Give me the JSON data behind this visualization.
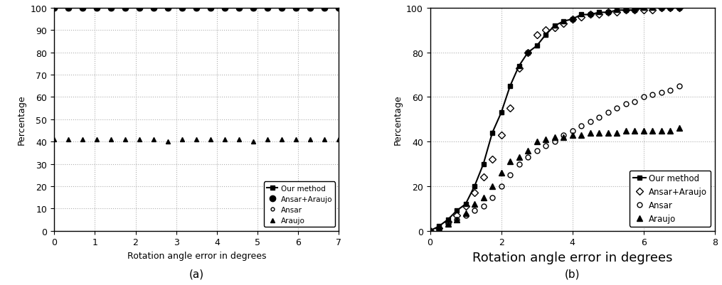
{
  "chart_a": {
    "xlabel": "Rotation angle error in degrees",
    "ylabel": "Percentage",
    "xlim": [
      0,
      7
    ],
    "ylim": [
      0,
      100
    ],
    "xticks": [
      0,
      1,
      2,
      3,
      4,
      5,
      6,
      7
    ],
    "yticks": [
      0,
      10,
      20,
      30,
      40,
      50,
      60,
      70,
      80,
      90,
      100
    ],
    "label_a": "(a)",
    "series": {
      "our_method": {
        "x": [
          0.0,
          0.35,
          0.7,
          1.05,
          1.4,
          1.75,
          2.1,
          2.45,
          2.8,
          3.15,
          3.5,
          3.85,
          4.2,
          4.55,
          4.9,
          5.25,
          5.6,
          5.95,
          6.3,
          6.65,
          7.0
        ],
        "y": [
          100,
          100,
          100,
          100,
          100,
          100,
          100,
          100,
          100,
          100,
          100,
          100,
          100,
          100,
          100,
          100,
          100,
          100,
          100,
          100,
          100
        ],
        "label": "Our method",
        "marker": "s",
        "markersize": 4
      },
      "ansar_araujo": {
        "x": [
          0.0,
          0.35,
          0.7,
          1.05,
          1.4,
          1.75,
          2.1,
          2.45,
          2.8,
          3.15,
          3.5,
          3.85,
          4.2,
          4.55,
          4.9,
          5.25,
          5.6,
          5.95,
          6.3,
          6.65,
          7.0
        ],
        "y": [
          100,
          100,
          100,
          100,
          100,
          100,
          100,
          100,
          100,
          100,
          100,
          100,
          100,
          100,
          100,
          100,
          100,
          100,
          100,
          100,
          100
        ],
        "label": "Ansar+Araujo",
        "marker": "o",
        "markersize": 6
      },
      "ansar": {
        "x": [
          0.0,
          0.35,
          0.7,
          1.05,
          1.4,
          1.75,
          2.1,
          2.45,
          2.8,
          3.15,
          3.5,
          3.85,
          4.2,
          4.55,
          4.9,
          5.25,
          5.6,
          5.95,
          6.3,
          6.65,
          7.0
        ],
        "y": [
          100,
          100,
          100,
          100,
          100,
          100,
          100,
          100,
          100,
          100,
          100,
          100,
          100,
          100,
          100,
          100,
          100,
          100,
          100,
          100,
          100
        ],
        "label": "Ansar",
        "marker": "o",
        "markersize": 3.5
      },
      "araujo": {
        "x": [
          0.0,
          0.35,
          0.7,
          1.05,
          1.4,
          1.75,
          2.1,
          2.45,
          2.8,
          3.15,
          3.5,
          3.85,
          4.2,
          4.55,
          4.9,
          5.25,
          5.6,
          5.95,
          6.3,
          6.65,
          7.0
        ],
        "y": [
          41,
          41,
          41,
          41,
          41,
          41,
          41,
          41,
          40,
          41,
          41,
          41,
          41,
          41,
          40,
          41,
          41,
          41,
          41,
          41,
          41
        ],
        "label": "Araujo",
        "marker": "^",
        "markersize": 5
      }
    }
  },
  "chart_b": {
    "xlabel": "Rotation angle error in degrees",
    "ylabel": "Percentage",
    "xlim": [
      0,
      8
    ],
    "ylim": [
      0,
      100
    ],
    "xticks": [
      0,
      2,
      4,
      6,
      8
    ],
    "yticks": [
      0,
      20,
      40,
      60,
      80,
      100
    ],
    "label_b": "(b)",
    "series": {
      "our_method": {
        "x": [
          0.0,
          0.25,
          0.5,
          0.75,
          1.0,
          1.25,
          1.5,
          1.75,
          2.0,
          2.25,
          2.5,
          2.75,
          3.0,
          3.25,
          3.5,
          3.75,
          4.0,
          4.25,
          4.5,
          4.75,
          5.0,
          5.25,
          5.5,
          5.75,
          6.0,
          6.25,
          6.5,
          6.75,
          7.0
        ],
        "y": [
          0,
          2,
          5,
          9,
          12,
          20,
          30,
          44,
          53,
          65,
          74,
          80,
          83,
          88,
          92,
          94,
          95,
          97,
          97,
          98,
          98,
          99,
          99,
          99,
          100,
          100,
          100,
          100,
          100
        ],
        "label": "Our method",
        "marker": "s",
        "markersize": 5
      },
      "ansar_araujo": {
        "x": [
          0.0,
          0.25,
          0.5,
          0.75,
          1.0,
          1.25,
          1.5,
          1.75,
          2.0,
          2.25,
          2.5,
          2.75,
          3.0,
          3.25,
          3.5,
          3.75,
          4.0,
          4.25,
          4.5,
          4.75,
          5.0,
          5.25,
          5.5,
          5.75,
          6.0,
          6.25,
          6.5,
          6.75,
          7.0
        ],
        "y": [
          0,
          1,
          4,
          7,
          11,
          17,
          24,
          32,
          43,
          55,
          73,
          80,
          88,
          90,
          91,
          93,
          95,
          96,
          97,
          97,
          98,
          98,
          99,
          99,
          99,
          99,
          100,
          100,
          100
        ],
        "label": "Ansar+Araujo",
        "marker": "D",
        "markersize": 5
      },
      "ansar": {
        "x": [
          0.0,
          0.25,
          0.5,
          0.75,
          1.0,
          1.25,
          1.5,
          1.75,
          2.0,
          2.25,
          2.5,
          2.75,
          3.0,
          3.25,
          3.5,
          3.75,
          4.0,
          4.25,
          4.5,
          4.75,
          5.0,
          5.25,
          5.5,
          5.75,
          6.0,
          6.25,
          6.5,
          6.75,
          7.0
        ],
        "y": [
          0,
          1,
          3,
          5,
          7,
          9,
          11,
          15,
          20,
          25,
          30,
          33,
          36,
          38,
          40,
          43,
          45,
          47,
          49,
          51,
          53,
          55,
          57,
          58,
          60,
          61,
          62,
          63,
          65
        ],
        "label": "Ansar",
        "marker": "o",
        "markersize": 5
      },
      "araujo": {
        "x": [
          0.0,
          0.25,
          0.5,
          0.75,
          1.0,
          1.25,
          1.5,
          1.75,
          2.0,
          2.25,
          2.5,
          2.75,
          3.0,
          3.25,
          3.5,
          3.75,
          4.0,
          4.25,
          4.5,
          4.75,
          5.0,
          5.25,
          5.5,
          5.75,
          6.0,
          6.25,
          6.5,
          6.75,
          7.0
        ],
        "y": [
          0,
          1,
          3,
          5,
          8,
          12,
          15,
          20,
          26,
          31,
          33,
          36,
          40,
          41,
          42,
          42,
          43,
          43,
          44,
          44,
          44,
          44,
          45,
          45,
          45,
          45,
          45,
          45,
          46
        ],
        "label": "Araujo",
        "marker": "^",
        "markersize": 6
      }
    }
  },
  "color": "#000000",
  "grid_color": "#b0b0b0",
  "bg_color": "#ffffff"
}
